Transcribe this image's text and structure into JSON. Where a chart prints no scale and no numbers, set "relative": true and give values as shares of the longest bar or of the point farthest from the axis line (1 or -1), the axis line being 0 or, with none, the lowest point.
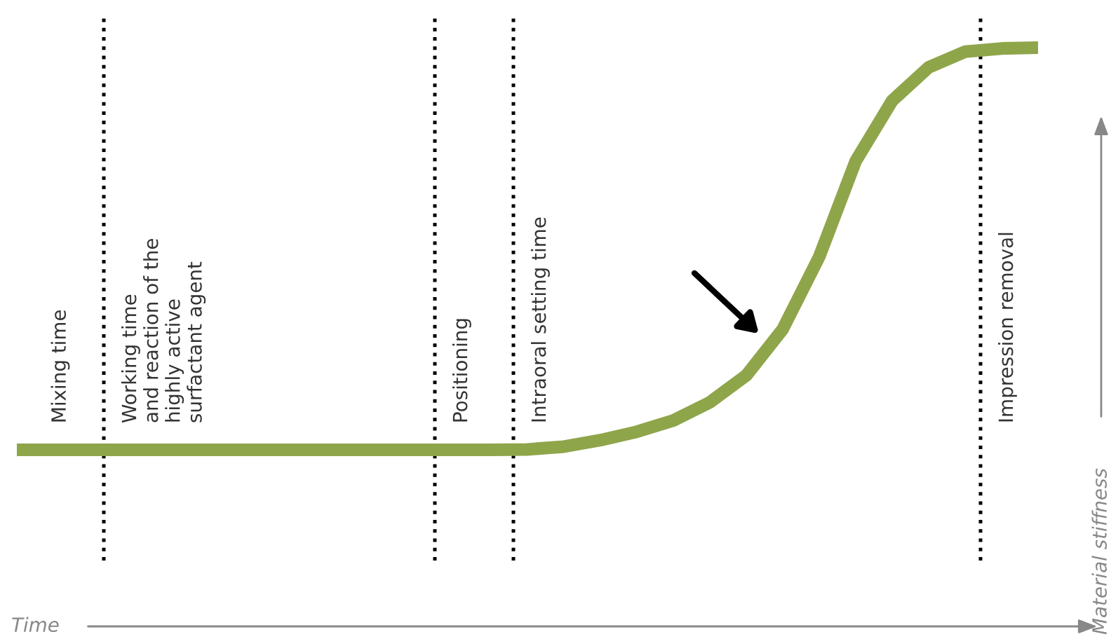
{
  "chart_data": {
    "type": "line",
    "relative": true,
    "ylabel": "Material stiffness",
    "categories": [
      null,
      null,
      null,
      null,
      null,
      null,
      null,
      null,
      null,
      null,
      null,
      null,
      null,
      null,
      null,
      null,
      null,
      null,
      null,
      null,
      null,
      null,
      null,
      null,
      null,
      null,
      null,
      null,
      null
    ],
    "series": [
      {
        "color": "#8fa54a",
        "values": [
          0,
          0,
          0,
          0,
          0,
          0,
          0,
          0,
          0,
          0,
          0,
          0,
          0,
          0,
          0.001,
          0.008,
          0.024,
          0.045,
          0.073,
          0.118,
          0.185,
          0.3,
          0.48,
          0.718,
          0.868,
          0.951,
          0.99,
          0.998,
          1
        ]
      }
    ],
    "annotations": [
      "Mixing time",
      "Working time\nand reaction of the\nhighly active\nsurfactant agent",
      "Positioning",
      "Intraoral setting time",
      "Impression removal",
      "Time"
    ],
    "marker": "none",
    "line_style": "solid"
  }
}
